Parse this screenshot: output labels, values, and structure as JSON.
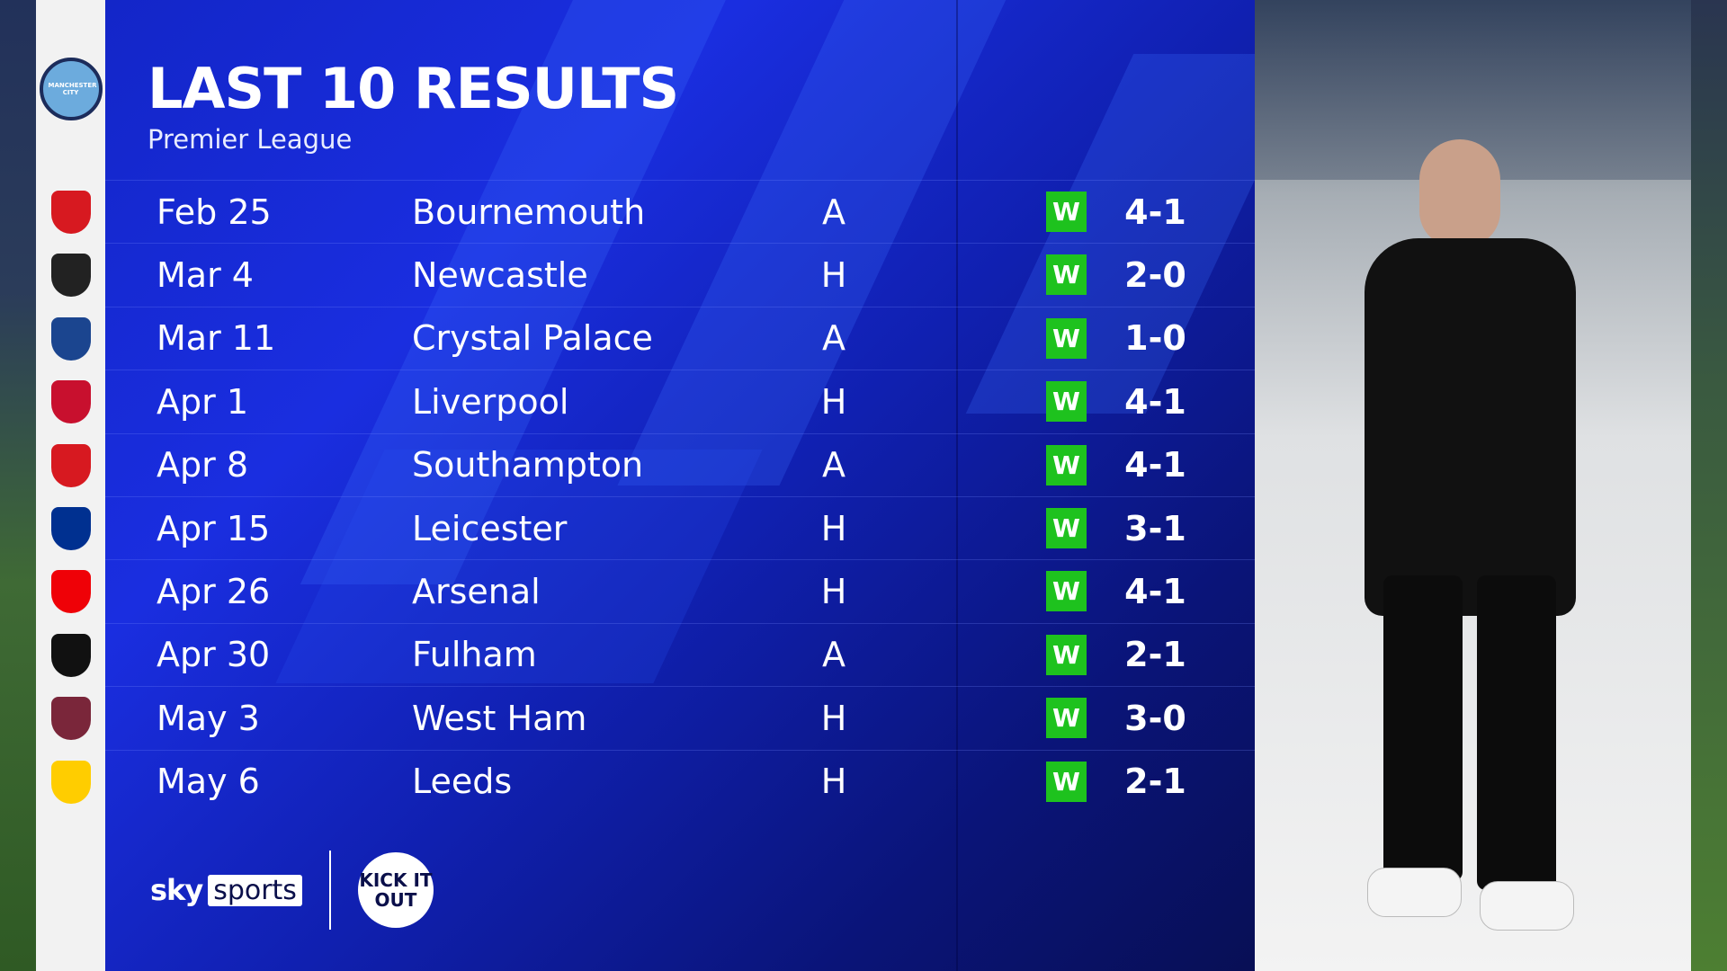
{
  "header": {
    "title": "LAST 10 RESULTS",
    "subtitle": "Premier League"
  },
  "team": {
    "name": "Manchester City",
    "crest_icon": "manchester-city-crest"
  },
  "colors": {
    "panel": "#1326c8",
    "win": "#1ec21e"
  },
  "results": [
    {
      "date": "Feb 25",
      "opponent": "Bournemouth",
      "venue": "A",
      "result": "W",
      "score": "4-1",
      "crest": "#d71920"
    },
    {
      "date": "Mar 4",
      "opponent": "Newcastle",
      "venue": "H",
      "result": "W",
      "score": "2-0",
      "crest": "#222222"
    },
    {
      "date": "Mar 11",
      "opponent": "Crystal Palace",
      "venue": "A",
      "result": "W",
      "score": "1-0",
      "crest": "#1b458f"
    },
    {
      "date": "Apr 1",
      "opponent": "Liverpool",
      "venue": "H",
      "result": "W",
      "score": "4-1",
      "crest": "#c8102e"
    },
    {
      "date": "Apr 8",
      "opponent": "Southampton",
      "venue": "A",
      "result": "W",
      "score": "4-1",
      "crest": "#d71920"
    },
    {
      "date": "Apr 15",
      "opponent": "Leicester",
      "venue": "H",
      "result": "W",
      "score": "3-1",
      "crest": "#003090"
    },
    {
      "date": "Apr 26",
      "opponent": "Arsenal",
      "venue": "H",
      "result": "W",
      "score": "4-1",
      "crest": "#ef0107"
    },
    {
      "date": "Apr 30",
      "opponent": "Fulham",
      "venue": "A",
      "result": "W",
      "score": "2-1",
      "crest": "#111111"
    },
    {
      "date": "May 3",
      "opponent": "West Ham",
      "venue": "H",
      "result": "W",
      "score": "3-0",
      "crest": "#7a263a"
    },
    {
      "date": "May 6",
      "opponent": "Leeds",
      "venue": "H",
      "result": "W",
      "score": "2-1",
      "crest": "#ffcd00"
    }
  ],
  "footer": {
    "sky": "sky",
    "sports": "sports",
    "kick_it_out": "KICK IT OUT"
  }
}
